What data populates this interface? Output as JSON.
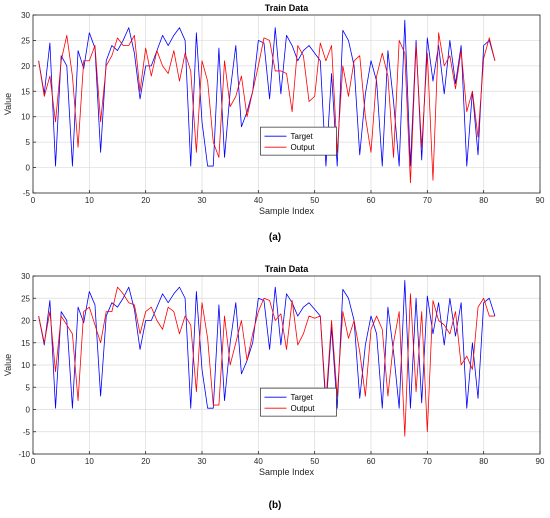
{
  "chart_data": [
    {
      "type": "line",
      "caption": "(a)",
      "title": "Train Data",
      "xlabel": "Sample Index",
      "ylabel": "Value",
      "xlim": [
        0,
        90
      ],
      "ylim": [
        -5,
        30
      ],
      "xticks": [
        0,
        10,
        20,
        30,
        40,
        50,
        60,
        70,
        80,
        90
      ],
      "yticks": [
        -5,
        0,
        5,
        10,
        15,
        20,
        25,
        30
      ],
      "grid": true,
      "legend_position": "center",
      "series": [
        {
          "name": "Target",
          "color": "#0000ff",
          "x": [
            1,
            2,
            3,
            4,
            5,
            6,
            7,
            8,
            9,
            10,
            11,
            12,
            13,
            14,
            15,
            16,
            17,
            18,
            19,
            20,
            21,
            22,
            23,
            24,
            25,
            26,
            27,
            28,
            29,
            30,
            31,
            32,
            33,
            34,
            35,
            36,
            37,
            38,
            39,
            40,
            41,
            42,
            43,
            44,
            45,
            46,
            47,
            48,
            49,
            50,
            51,
            52,
            53,
            54,
            55,
            56,
            57,
            58,
            59,
            60,
            61,
            62,
            63,
            64,
            65,
            66,
            67,
            68,
            69,
            70,
            71,
            72,
            73,
            74,
            75,
            76,
            77,
            78,
            79,
            80,
            81,
            82
          ],
          "y": [
            21,
            14.5,
            24.5,
            0.3,
            22,
            20,
            0.3,
            23,
            19.5,
            26.5,
            23.5,
            3,
            21,
            24,
            23,
            25,
            27.5,
            22.5,
            13.5,
            20,
            20,
            23,
            26,
            24,
            26,
            27.5,
            25,
            0.3,
            26.5,
            9,
            0.3,
            0.3,
            23.5,
            2,
            15,
            24,
            8,
            11,
            15,
            25,
            24.5,
            13.5,
            27.5,
            14.5,
            26,
            24,
            21,
            23,
            24,
            22.5,
            21,
            0.3,
            18.5,
            0.3,
            27,
            25,
            20,
            2.5,
            14.5,
            21,
            17,
            0.3,
            23,
            13,
            0.3,
            29,
            0.3,
            25,
            1.5,
            25.5,
            17,
            24,
            14.5,
            25,
            16.5,
            24,
            0.3,
            15,
            2.5,
            24,
            25,
            21
          ]
        },
        {
          "name": "Output",
          "color": "#ff0000",
          "x": [
            1,
            2,
            3,
            4,
            5,
            6,
            7,
            8,
            9,
            10,
            11,
            12,
            13,
            14,
            15,
            16,
            17,
            18,
            19,
            20,
            21,
            22,
            23,
            24,
            25,
            26,
            27,
            28,
            29,
            30,
            31,
            32,
            33,
            34,
            35,
            36,
            37,
            38,
            39,
            40,
            41,
            42,
            43,
            44,
            45,
            46,
            47,
            48,
            49,
            50,
            51,
            52,
            53,
            54,
            55,
            56,
            57,
            58,
            59,
            60,
            61,
            62,
            63,
            64,
            65,
            66,
            67,
            68,
            69,
            70,
            71,
            72,
            73,
            74,
            75,
            76,
            77,
            78,
            79,
            80,
            81,
            82
          ],
          "y": [
            21,
            14,
            18,
            9,
            21,
            26,
            18,
            4,
            21,
            21,
            24,
            9,
            20,
            22,
            25.5,
            24,
            24,
            26,
            15,
            23.5,
            18,
            23,
            20,
            18.5,
            23,
            17,
            22.5,
            19,
            3,
            21,
            17,
            5,
            2,
            21,
            12,
            14,
            18,
            10,
            15,
            20,
            25.5,
            25,
            19,
            19,
            18.5,
            11,
            24,
            22,
            13,
            14,
            24.5,
            21,
            24,
            3,
            20,
            14,
            21,
            22,
            10,
            3,
            18,
            22.5,
            18,
            2,
            25,
            22.5,
            -3,
            24,
            4,
            22.5,
            -2.5,
            26.5,
            20,
            22,
            15.5,
            23,
            11,
            15,
            6,
            21.5,
            25.5,
            21
          ]
        }
      ]
    },
    {
      "type": "line",
      "caption": "(b)",
      "title": "Train Data",
      "xlabel": "Sample Index",
      "ylabel": "Value",
      "xlim": [
        0,
        90
      ],
      "ylim": [
        -10,
        30
      ],
      "xticks": [
        0,
        10,
        20,
        30,
        40,
        50,
        60,
        70,
        80,
        90
      ],
      "yticks": [
        -10,
        -5,
        0,
        5,
        10,
        15,
        20,
        25,
        30
      ],
      "grid": true,
      "legend_position": "center",
      "series": [
        {
          "name": "Target",
          "color": "#0000ff",
          "x": [
            1,
            2,
            3,
            4,
            5,
            6,
            7,
            8,
            9,
            10,
            11,
            12,
            13,
            14,
            15,
            16,
            17,
            18,
            19,
            20,
            21,
            22,
            23,
            24,
            25,
            26,
            27,
            28,
            29,
            30,
            31,
            32,
            33,
            34,
            35,
            36,
            37,
            38,
            39,
            40,
            41,
            42,
            43,
            44,
            45,
            46,
            47,
            48,
            49,
            50,
            51,
            52,
            53,
            54,
            55,
            56,
            57,
            58,
            59,
            60,
            61,
            62,
            63,
            64,
            65,
            66,
            67,
            68,
            69,
            70,
            71,
            72,
            73,
            74,
            75,
            76,
            77,
            78,
            79,
            80,
            81,
            82
          ],
          "y": [
            21,
            14.5,
            24.5,
            0.3,
            22,
            20,
            0.3,
            23,
            19.5,
            26.5,
            23.5,
            3,
            21,
            24,
            23,
            25,
            27.5,
            22.5,
            13.5,
            20,
            20,
            23,
            26,
            24,
            26,
            27.5,
            25,
            0.3,
            26.5,
            9,
            0.3,
            0.3,
            23.5,
            2,
            15,
            24,
            8,
            11,
            15,
            25,
            24.5,
            13.5,
            27.5,
            14.5,
            26,
            24,
            21,
            23,
            24,
            22.5,
            21,
            0.3,
            18.5,
            0.3,
            27,
            25,
            20,
            2.5,
            14.5,
            21,
            17,
            0.3,
            23,
            13,
            0.3,
            29,
            0.3,
            25,
            1.5,
            25.5,
            17,
            24,
            14.5,
            25,
            16.5,
            24,
            0.3,
            15,
            2.5,
            24,
            25,
            21
          ]
        },
        {
          "name": "Output",
          "color": "#ff0000",
          "x": [
            1,
            2,
            3,
            4,
            5,
            6,
            7,
            8,
            9,
            10,
            11,
            12,
            13,
            14,
            15,
            16,
            17,
            18,
            19,
            20,
            21,
            22,
            23,
            24,
            25,
            26,
            27,
            28,
            29,
            30,
            31,
            32,
            33,
            34,
            35,
            36,
            37,
            38,
            39,
            40,
            41,
            42,
            43,
            44,
            45,
            46,
            47,
            48,
            49,
            50,
            51,
            52,
            53,
            54,
            55,
            56,
            57,
            58,
            59,
            60,
            61,
            62,
            63,
            64,
            65,
            66,
            67,
            68,
            69,
            70,
            71,
            72,
            73,
            74,
            75,
            76,
            77,
            78,
            79,
            80,
            81,
            82
          ],
          "y": [
            21,
            15,
            22,
            8.5,
            21,
            19,
            17,
            2,
            22,
            23,
            19,
            15,
            22,
            22,
            27.5,
            26,
            24,
            23.5,
            17,
            22,
            23,
            20,
            18,
            23,
            22,
            17,
            21,
            19,
            4,
            24,
            16,
            1,
            1,
            21,
            10,
            15,
            20,
            11,
            17,
            22,
            25,
            24.5,
            20,
            21.5,
            13.5,
            24.5,
            14.5,
            17,
            21,
            20.5,
            21,
            2,
            20,
            3,
            22,
            16,
            20,
            13,
            3,
            18,
            21,
            18,
            3,
            15,
            22,
            -6,
            26,
            4,
            22,
            -5,
            24.5,
            20,
            19,
            17,
            22,
            10,
            12,
            9,
            23,
            25,
            21,
            21
          ]
        }
      ]
    }
  ]
}
